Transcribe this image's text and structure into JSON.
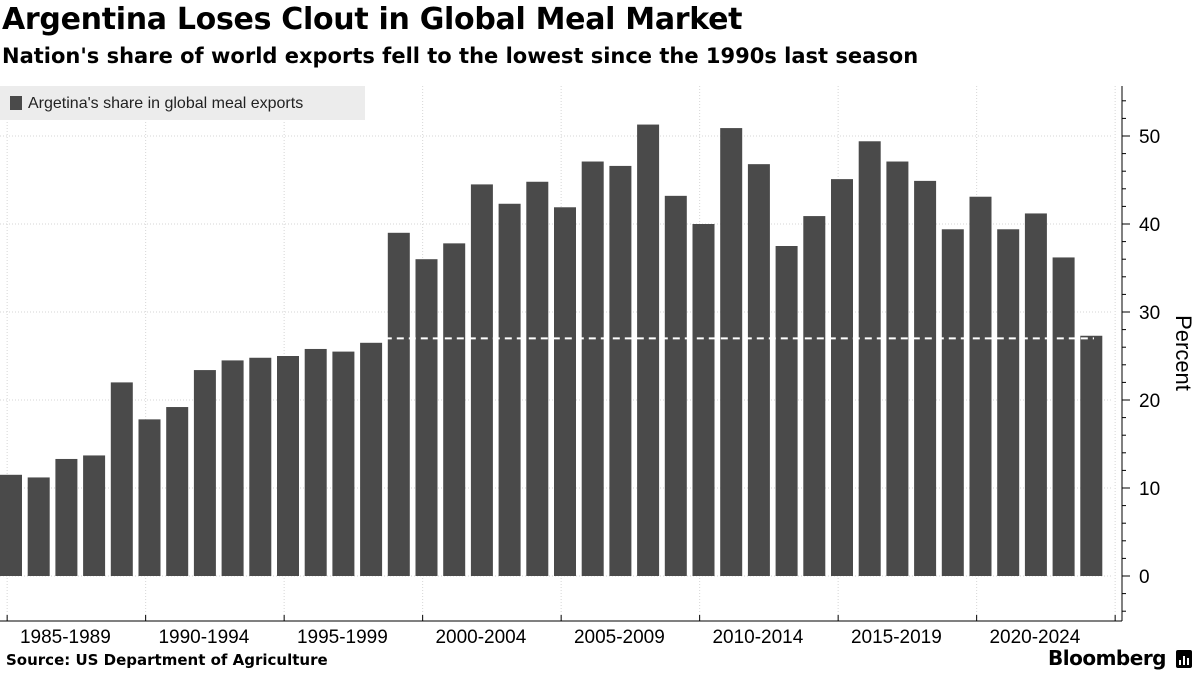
{
  "title": "Argentina Loses Clout in Global Meal Market",
  "subtitle": "Nation's share of world exports fell to the lowest since the 1990s last season",
  "source": "Source: US Department of Agriculture",
  "brand": "Bloomberg",
  "chart_data": {
    "type": "bar",
    "title": "Argentina Loses Clout in Global Meal Market",
    "legend": [
      "Argetina's share in global meal exports"
    ],
    "legend_position": "top-left",
    "ylabel": "Percent",
    "xlabel": "",
    "ylim": [
      -5,
      55
    ],
    "yticks": [
      0,
      10,
      20,
      30,
      40,
      50
    ],
    "grid": true,
    "x_tick_labels": [
      "1985-1989",
      "1990-1994",
      "1995-1999",
      "2000-2004",
      "2005-2009",
      "2010-2014",
      "2015-2019",
      "2020-2024"
    ],
    "series": [
      {
        "name": "Argetina's share in global meal exports",
        "color": "#4a4a4a",
        "values": [
          11.5,
          11.2,
          13.3,
          13.7,
          22.0,
          17.8,
          19.2,
          23.4,
          24.5,
          24.8,
          25.0,
          25.8,
          25.5,
          26.5,
          39.0,
          36.0,
          37.8,
          44.5,
          42.3,
          44.8,
          41.9,
          47.1,
          46.6,
          51.3,
          43.2,
          40.0,
          50.9,
          46.8,
          37.5,
          40.9,
          45.1,
          49.4,
          47.1,
          44.9,
          39.4,
          43.1,
          39.4,
          41.2,
          36.2,
          27.3
        ]
      }
    ],
    "reference_line": {
      "value": 27.0,
      "style": "dashed",
      "color": "#ffffff"
    }
  }
}
